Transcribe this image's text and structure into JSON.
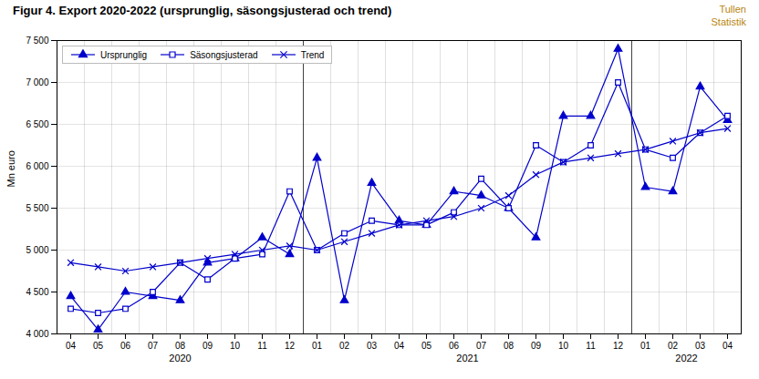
{
  "chart_data": {
    "type": "line",
    "title": "Figur 4. Export 2020-2022 (ursprunglig, säsongsjusterad och trend)",
    "ylabel": "Mn euro",
    "watermark": {
      "lines": [
        "Tullen",
        "Statistik"
      ],
      "color": "#B8860B"
    },
    "categories": [
      "04",
      "05",
      "06",
      "07",
      "08",
      "09",
      "10",
      "11",
      "12",
      "01",
      "02",
      "03",
      "04",
      "05",
      "06",
      "07",
      "08",
      "09",
      "10",
      "11",
      "12",
      "01",
      "02",
      "03",
      "04"
    ],
    "year_groups": [
      {
        "label": "2020",
        "start": 0,
        "end": 8
      },
      {
        "label": "2021",
        "start": 9,
        "end": 20
      },
      {
        "label": "2022",
        "start": 21,
        "end": 24
      }
    ],
    "series": [
      {
        "name": "Ursprunglig",
        "color": "#0000CC",
        "marker": "triangle",
        "values": [
          4450,
          4050,
          4500,
          4450,
          4400,
          4850,
          4900,
          5150,
          4950,
          6100,
          4400,
          5800,
          5350,
          5300,
          5700,
          5650,
          5500,
          5150,
          6600,
          6600,
          7400,
          5750,
          5700,
          6950,
          6550
        ]
      },
      {
        "name": "Säsongsjusterad",
        "color": "#0000CC",
        "marker": "square_open",
        "values": [
          4300,
          4250,
          4300,
          4500,
          4850,
          4650,
          4900,
          4950,
          5700,
          5000,
          5200,
          5350,
          5300,
          5300,
          5450,
          5850,
          5500,
          6250,
          6050,
          6250,
          7000,
          6200,
          6100,
          6400,
          6600
        ]
      },
      {
        "name": "Trend",
        "color": "#0000CC",
        "marker": "x",
        "values": [
          4850,
          4800,
          4750,
          4800,
          4850,
          4900,
          4950,
          5000,
          5050,
          5000,
          5100,
          5200,
          5300,
          5350,
          5400,
          5500,
          5650,
          5900,
          6050,
          6100,
          6150,
          6200,
          6300,
          6400,
          6450
        ]
      }
    ],
    "ylim": [
      4000,
      7500
    ],
    "yticks": [
      {
        "value": 4000,
        "label": "4 000"
      },
      {
        "value": 4500,
        "label": "4 500"
      },
      {
        "value": 5000,
        "label": "5 000"
      },
      {
        "value": 5500,
        "label": "5 500"
      },
      {
        "value": 6000,
        "label": "6 000"
      },
      {
        "value": 6500,
        "label": "6 500"
      },
      {
        "value": 7000,
        "label": "7 000"
      },
      {
        "value": 7500,
        "label": "7 500"
      }
    ],
    "grid": true,
    "legend": "upper left"
  }
}
